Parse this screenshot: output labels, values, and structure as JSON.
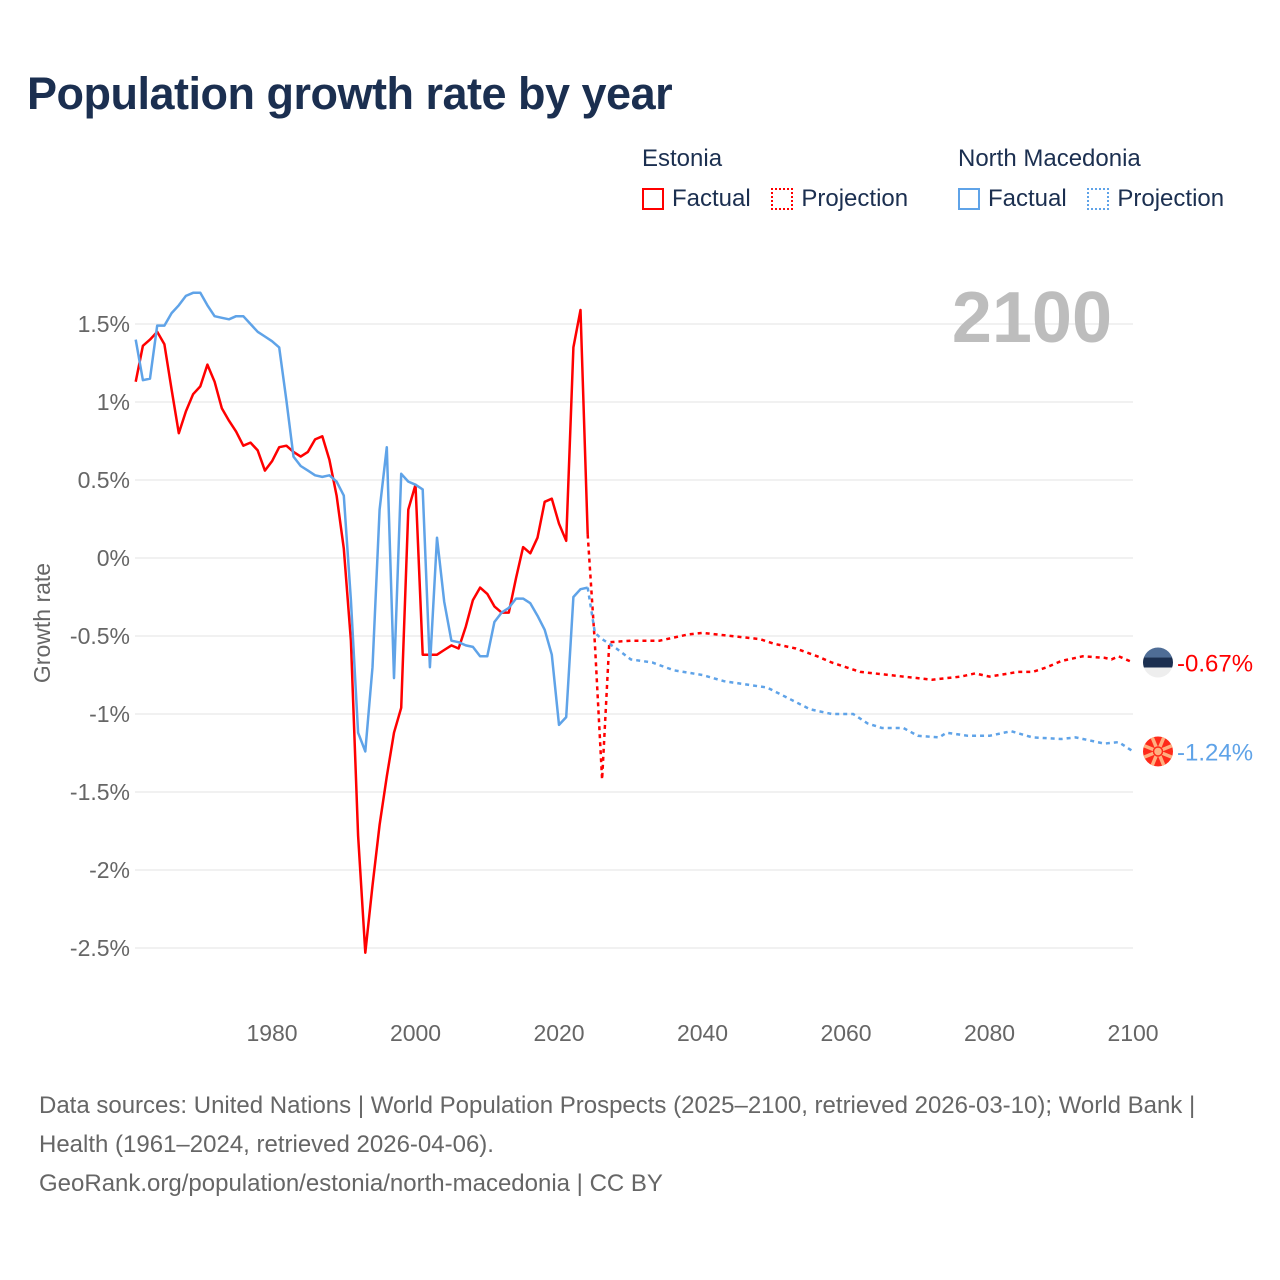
{
  "title": "Population growth rate by year",
  "legend": {
    "groups": [
      {
        "name": "Estonia",
        "factual": "Factual",
        "projection": "Projection",
        "color": "#ff0000"
      },
      {
        "name": "North Macedonia",
        "factual": "Factual",
        "projection": "Projection",
        "color": "#5fa3e8"
      }
    ]
  },
  "year_display": "2100",
  "footer": {
    "sources": "Data sources: United Nations | World Population Prospects (2025–2100, retrieved 2026-03-10); World Bank | Health (1961–2024, retrieved 2026-04-06).",
    "link": "GeoRank.org/population/estonia/north-macedonia | CC BY"
  },
  "chart_data": {
    "type": "line",
    "title": "Population growth rate by year",
    "xlabel": "",
    "ylabel": "Growth rate",
    "xlim": [
      1961,
      2100
    ],
    "ylim": [
      -2.8,
      1.8
    ],
    "x_ticks": [
      1980,
      2000,
      2020,
      2040,
      2060,
      2080,
      2100
    ],
    "x_tick_labels": [
      "1980",
      "2000",
      "2020",
      "2040",
      "2060",
      "2080",
      "2100"
    ],
    "y_ticks": [
      1.5,
      1,
      0.5,
      0,
      -0.5,
      -1,
      -1.5,
      -2,
      -2.5
    ],
    "y_tick_labels": [
      "1.5%",
      "1%",
      "0.5%",
      "0%",
      "-0.5%",
      "-1%",
      "-1.5%",
      "-2%",
      "-2.5%"
    ],
    "grid": true,
    "legend_position": "top-right",
    "series": [
      {
        "name": "Estonia",
        "color": "#ff0000",
        "end_label": "-0.67%",
        "factual": {
          "x": [
            1961,
            1962,
            1963,
            1964,
            1965,
            1966,
            1967,
            1968,
            1969,
            1970,
            1971,
            1972,
            1973,
            1974,
            1975,
            1976,
            1977,
            1978,
            1979,
            1980,
            1981,
            1982,
            1983,
            1984,
            1985,
            1986,
            1987,
            1988,
            1989,
            1990,
            1991,
            1992,
            1993,
            1994,
            1995,
            1996,
            1997,
            1998,
            1999,
            2000,
            2001,
            2002,
            2003,
            2004,
            2005,
            2006,
            2007,
            2008,
            2009,
            2010,
            2011,
            2012,
            2013,
            2014,
            2015,
            2016,
            2017,
            2018,
            2019,
            2020,
            2021,
            2022,
            2023,
            2024
          ],
          "y": [
            1.13,
            1.36,
            1.4,
            1.45,
            1.37,
            1.08,
            0.8,
            0.94,
            1.05,
            1.1,
            1.24,
            1.13,
            0.96,
            0.88,
            0.81,
            0.72,
            0.74,
            0.69,
            0.56,
            0.62,
            0.71,
            0.72,
            0.68,
            0.65,
            0.68,
            0.76,
            0.78,
            0.63,
            0.4,
            0.06,
            -0.53,
            -1.78,
            -2.53,
            -2.1,
            -1.71,
            -1.4,
            -1.12,
            -0.96,
            0.31,
            0.47,
            -0.62,
            -0.62,
            -0.62,
            -0.59,
            -0.56,
            -0.58,
            -0.44,
            -0.27,
            -0.19,
            -0.23,
            -0.31,
            -0.35,
            -0.35,
            -0.13,
            0.07,
            0.03,
            0.13,
            0.36,
            0.38,
            0.22,
            0.11,
            1.35,
            1.59,
            0.15
          ]
        },
        "projection": {
          "x": [
            2024,
            2025,
            2026,
            2027,
            2030,
            2034,
            2038,
            2040,
            2044,
            2048,
            2050,
            2053,
            2056,
            2058,
            2062,
            2066,
            2068,
            2072,
            2076,
            2078,
            2080,
            2084,
            2086,
            2088,
            2090,
            2093,
            2096,
            2097,
            2098,
            2100
          ],
          "y": [
            0.15,
            -0.55,
            -1.42,
            -0.54,
            -0.53,
            -0.53,
            -0.49,
            -0.48,
            -0.5,
            -0.52,
            -0.55,
            -0.58,
            -0.63,
            -0.67,
            -0.73,
            -0.75,
            -0.76,
            -0.78,
            -0.76,
            -0.74,
            -0.76,
            -0.73,
            -0.73,
            -0.7,
            -0.66,
            -0.63,
            -0.64,
            -0.65,
            -0.63,
            -0.67
          ]
        }
      },
      {
        "name": "North Macedonia",
        "color": "#5fa3e8",
        "end_label": "-1.24%",
        "factual": {
          "x": [
            1961,
            1962,
            1963,
            1964,
            1965,
            1966,
            1967,
            1968,
            1969,
            1970,
            1971,
            1972,
            1973,
            1974,
            1975,
            1976,
            1977,
            1978,
            1979,
            1980,
            1981,
            1982,
            1983,
            1984,
            1985,
            1986,
            1987,
            1988,
            1989,
            1990,
            1991,
            1992,
            1993,
            1994,
            1995,
            1996,
            1997,
            1998,
            1999,
            2000,
            2001,
            2002,
            2003,
            2004,
            2005,
            2006,
            2007,
            2008,
            2009,
            2010,
            2011,
            2012,
            2013,
            2014,
            2015,
            2016,
            2017,
            2018,
            2019,
            2020,
            2021,
            2022,
            2023,
            2024
          ],
          "y": [
            1.4,
            1.14,
            1.15,
            1.49,
            1.49,
            1.57,
            1.62,
            1.68,
            1.7,
            1.7,
            1.62,
            1.55,
            1.54,
            1.53,
            1.55,
            1.55,
            1.5,
            1.45,
            1.42,
            1.39,
            1.35,
            1.01,
            0.65,
            0.59,
            0.56,
            0.53,
            0.52,
            0.53,
            0.49,
            0.4,
            -0.27,
            -1.12,
            -1.24,
            -0.7,
            0.31,
            0.71,
            -0.77,
            0.54,
            0.49,
            0.47,
            0.44,
            -0.7,
            0.13,
            -0.28,
            -0.53,
            -0.54,
            -0.56,
            -0.57,
            -0.63,
            -0.63,
            -0.41,
            -0.35,
            -0.32,
            -0.26,
            -0.26,
            -0.29,
            -0.37,
            -0.46,
            -0.62,
            -1.07,
            -1.02,
            -0.25,
            -0.2,
            -0.19
          ]
        },
        "projection": {
          "x": [
            2024,
            2025,
            2026,
            2027,
            2028,
            2030,
            2033,
            2036,
            2040,
            2043,
            2046,
            2049,
            2052,
            2055,
            2058,
            2061,
            2063,
            2065,
            2068,
            2070,
            2073,
            2074,
            2077,
            2080,
            2083,
            2086,
            2090,
            2092,
            2096,
            2098,
            2100
          ],
          "y": [
            -0.19,
            -0.48,
            -0.52,
            -0.55,
            -0.58,
            -0.65,
            -0.67,
            -0.72,
            -0.75,
            -0.79,
            -0.81,
            -0.83,
            -0.9,
            -0.97,
            -1.0,
            -1.0,
            -1.06,
            -1.09,
            -1.09,
            -1.14,
            -1.15,
            -1.12,
            -1.14,
            -1.14,
            -1.11,
            -1.15,
            -1.16,
            -1.15,
            -1.19,
            -1.18,
            -1.24
          ]
        }
      }
    ]
  }
}
